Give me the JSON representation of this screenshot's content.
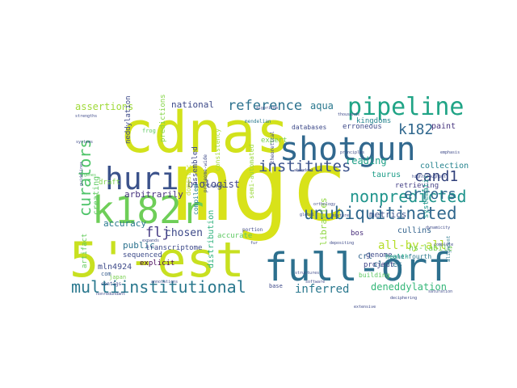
{
  "word_cloud": {
    "words": [
      {
        "text": "cdnas",
        "color": "#d2e21b"
      },
      {
        "text": "mgc",
        "color": "#d8e219"
      },
      {
        "text": "5'-est",
        "color": "#c8e020"
      },
      {
        "text": "full-orf",
        "color": "#2d708e"
      },
      {
        "text": "shotgun",
        "color": "#31688e"
      },
      {
        "text": "pipeline",
        "color": "#20a486"
      },
      {
        "text": "k182r",
        "color": "#6ece58"
      },
      {
        "text": "huri",
        "color": "#3b528b"
      },
      {
        "text": "multiinstitutional",
        "color": "#2a788e"
      },
      {
        "text": "unubiquitinated",
        "color": "#31688e"
      },
      {
        "text": "nonpredicted",
        "color": "#1f948c"
      },
      {
        "text": "institutes",
        "color": "#3b528b"
      },
      {
        "text": "reference",
        "color": "#2c728e"
      },
      {
        "text": "curators",
        "color": "#50c46a"
      },
      {
        "text": "errors",
        "color": "#31688e"
      },
      {
        "text": "cand1",
        "color": "#30407a"
      },
      {
        "text": "k182",
        "color": "#31688e"
      },
      {
        "text": "inferred",
        "color": "#2a788e"
      },
      {
        "text": "deneddylation",
        "color": "#35b779"
      },
      {
        "text": "assertions",
        "color": "#a0da39"
      },
      {
        "text": "national",
        "color": "#3e4a89"
      },
      {
        "text": "aqua",
        "color": "#2a788e"
      },
      {
        "text": "biologist",
        "color": "#414487"
      },
      {
        "text": "arbitrarily",
        "color": "#46327e"
      },
      {
        "text": "flj",
        "color": "#443983"
      },
      {
        "text": "chosen",
        "color": "#3e4a89"
      },
      {
        "text": "accuracy",
        "color": "#2a788e"
      },
      {
        "text": "creating",
        "color": "#5ec962"
      },
      {
        "text": "all-by-all",
        "color": "#b5de2b"
      },
      {
        "text": "taurus",
        "color": "#1f9e89"
      },
      {
        "text": "reading",
        "color": "#1fa088"
      },
      {
        "text": "metrics",
        "color": "#3b528b"
      },
      {
        "text": "cullins",
        "color": "#33638d"
      },
      {
        "text": "bos",
        "color": "#472d7b"
      },
      {
        "text": "paint",
        "color": "#46337e"
      },
      {
        "text": "collection",
        "color": "#25838e"
      },
      {
        "text": "clones",
        "color": "#2c728e"
      },
      {
        "text": "hs-labile",
        "color": "#73d056"
      },
      {
        "text": "crl",
        "color": "#32658e"
      },
      {
        "text": "expert",
        "color": "#7ad151"
      },
      {
        "text": "mln4924",
        "color": "#3e4a89"
      },
      {
        "text": "public",
        "color": "#2c728e"
      },
      {
        "text": "sequenced",
        "color": "#3e4c8a"
      },
      {
        "text": "explicit",
        "color": "#440154"
      },
      {
        "text": "transcriptome",
        "color": "#3e4a89"
      },
      {
        "text": "draft",
        "color": "#7fd34e"
      },
      {
        "text": "neddylation",
        "color": "#3e4a89"
      },
      {
        "text": "predictions",
        "color": "#86d549"
      },
      {
        "text": "assembled",
        "color": "#3e4a89"
      },
      {
        "text": "compiled",
        "color": "#26828e"
      },
      {
        "text": "accurate",
        "color": "#5ec962"
      },
      {
        "text": "distribution",
        "color": "#2db27d"
      },
      {
        "text": "genome",
        "color": "#3e4a89"
      },
      {
        "text": "project",
        "color": "#414487"
      },
      {
        "text": "kingdoms",
        "color": "#25848e"
      },
      {
        "text": "erroneous",
        "color": "#3e4a89"
      },
      {
        "text": "databases",
        "color": "#3e4a89"
      },
      {
        "text": "libraries",
        "color": "#90d743"
      },
      {
        "text": "building",
        "color": "#5ec962"
      },
      {
        "text": "one-fourth",
        "color": "#2a788e"
      },
      {
        "text": "health",
        "color": "#20a486"
      },
      {
        "text": "com",
        "color": "#365c8d"
      },
      {
        "text": "retrieving",
        "color": "#433e85"
      },
      {
        "text": "mendelian",
        "color": "#2a788e"
      },
      {
        "text": "frog",
        "color": "#5ec962"
      },
      {
        "text": "domestic",
        "color": "#c2df23"
      },
      {
        "text": "consistency",
        "color": "#a5db36"
      },
      {
        "text": "semi-automated",
        "color": "#9bd93c"
      },
      {
        "text": "frames",
        "color": "#3b528b"
      },
      {
        "text": "artifact",
        "color": "#65cb5e"
      },
      {
        "text": "portion",
        "color": "#3e4a89"
      },
      {
        "text": "contigs",
        "color": "#3e4a89"
      },
      {
        "text": "base",
        "color": "#3e4a89"
      },
      {
        "text": "japan",
        "color": "#7ad151"
      },
      {
        "text": "systematic",
        "color": "#1f958b"
      },
      {
        "text": "theoretical",
        "color": "#404688"
      },
      {
        "text": "deciphering",
        "color": "#3e4a89"
      },
      {
        "text": "saturation",
        "color": "#3e4a89"
      },
      {
        "text": "orthology",
        "color": "#3e4a89"
      },
      {
        "text": "global",
        "color": "#3e4a89"
      },
      {
        "text": "algorithm",
        "color": "#3e4a89"
      },
      {
        "text": "highthroughput",
        "color": "#3e4a89"
      },
      {
        "text": "emphasis",
        "color": "#3e4a89"
      },
      {
        "text": "fur",
        "color": "#3e4a89"
      },
      {
        "text": "guidelines",
        "color": "#3e4a89"
      },
      {
        "text": "genes",
        "color": "#5ec962"
      },
      {
        "text": "extensive",
        "color": "#3e4a89"
      },
      {
        "text": "software",
        "color": "#3e4a89"
      },
      {
        "text": "strengths",
        "color": "#3e4a89"
      },
      {
        "text": "thousands",
        "color": "#3e4a89"
      },
      {
        "text": "principles",
        "color": "#3e4a89"
      },
      {
        "text": "nonredundant",
        "color": "#3e4a89"
      },
      {
        "text": "alignment",
        "color": "#2a788e"
      },
      {
        "text": "complete",
        "color": "#3e4a89"
      },
      {
        "text": "expands",
        "color": "#3e4a89"
      },
      {
        "text": "dynamicity",
        "color": "#3e4a89"
      },
      {
        "text": "annotations",
        "color": "#3e4a89"
      },
      {
        "text": "structures",
        "color": "#3e4a89"
      },
      {
        "text": "abundant",
        "color": "#3e4a89"
      },
      {
        "text": "mixture",
        "color": "#3e4a89"
      },
      {
        "text": "systems",
        "color": "#3e4a89"
      },
      {
        "text": "depositing",
        "color": "#3e4a89"
      },
      {
        "text": "proteome-wide",
        "color": "#3e4a89"
      }
    ]
  }
}
